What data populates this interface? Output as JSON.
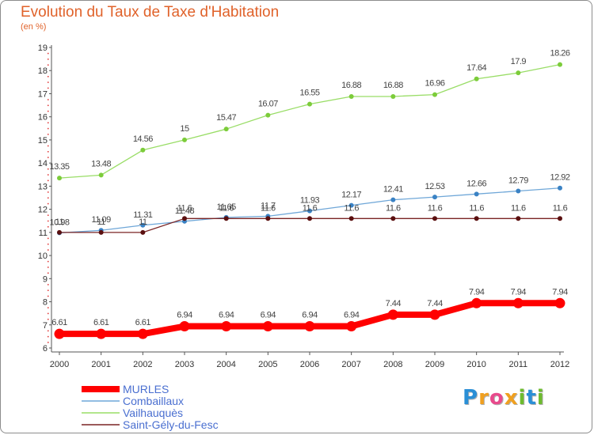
{
  "chart_data": {
    "type": "line",
    "title": "Evolution du Taux de Taxe d'Habitation",
    "subtitle": "(en %)",
    "x": [
      "2000",
      "2001",
      "2002",
      "2003",
      "2004",
      "2005",
      "2006",
      "2007",
      "2008",
      "2009",
      "2010",
      "2011",
      "2012"
    ],
    "ylim": [
      6,
      19
    ],
    "yticks": [
      "6",
      "7",
      "8",
      "9",
      "10",
      "11",
      "12",
      "13",
      "14",
      "15",
      "16",
      "17",
      "18",
      "19"
    ],
    "grid": false,
    "legend_position": "bottom-left",
    "series": [
      {
        "name": "MURLES",
        "color": "#ff0000",
        "values": [
          6.61,
          6.61,
          6.61,
          6.94,
          6.94,
          6.94,
          6.94,
          6.94,
          7.44,
          7.44,
          7.94,
          7.94,
          7.94
        ],
        "labels": [
          "6.61",
          "6.61",
          "6.61",
          "6.94",
          "6.94",
          "6.94",
          "6.94",
          "6.94",
          "7.44",
          "7.44",
          "7.94",
          "7.94",
          "7.94"
        ]
      },
      {
        "name": "Combaillaux",
        "color": "#6fa7d8",
        "values": [
          10.98,
          11.09,
          11.31,
          11.48,
          11.65,
          11.7,
          11.93,
          12.17,
          12.41,
          12.53,
          12.66,
          12.79,
          12.92
        ],
        "labels": [
          "10.98",
          "11.09",
          "11.31",
          "11.48",
          "11.65",
          "11.7",
          "11.93",
          "12.17",
          "12.41",
          "12.53",
          "12.66",
          "12.79",
          "12.92"
        ]
      },
      {
        "name": "Vailhauquès",
        "color": "#99dd66",
        "values": [
          13.35,
          13.48,
          14.56,
          15,
          15.47,
          16.07,
          16.55,
          16.88,
          16.88,
          16.96,
          17.64,
          17.9,
          18.26
        ],
        "labels": [
          "13.35",
          "13.48",
          "14.56",
          "15",
          "15.47",
          "16.07",
          "16.55",
          "16.88",
          "16.88",
          "16.96",
          "17.64",
          "17.9",
          "18.26"
        ]
      },
      {
        "name": "Saint-Gély-du-Fesc",
        "color": "#7a2424",
        "values": [
          11,
          11,
          11,
          11.6,
          11.6,
          11.6,
          11.6,
          11.6,
          11.6,
          11.6,
          11.6,
          11.6,
          11.6
        ],
        "labels": [
          "11",
          "11",
          "11",
          "11.6",
          "11.6",
          "11.6",
          "11.6",
          "11.6",
          "11.6",
          "11.6",
          "11.6",
          "11.6",
          "11.6"
        ]
      }
    ]
  },
  "logo": {
    "letters": [
      "P",
      "r",
      "o",
      "x",
      "i",
      "t",
      "i"
    ],
    "colors": [
      "#2a8fd6",
      "#f0a020",
      "#e84a8c",
      "#f0a020",
      "#6dbb2f",
      "#2a8fd6",
      "#6dbb2f"
    ]
  }
}
